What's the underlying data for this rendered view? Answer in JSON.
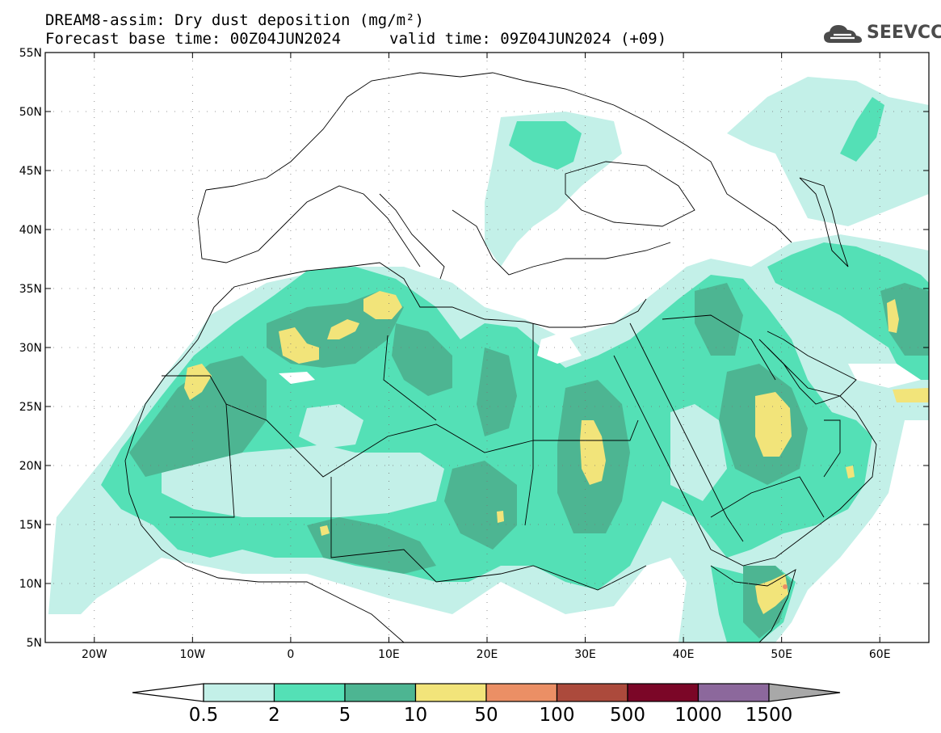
{
  "header": {
    "title": "DREAM8-assim: Dry dust deposition (mg/m²)",
    "base_time": "Forecast base time: 00Z04JUN2024",
    "valid_time": "valid time: 09Z04JUN2024 (+09)"
  },
  "logo": {
    "text": "SEEVCCC",
    "icon": "cloud-icon"
  },
  "map": {
    "lat_labels": [
      "55N",
      "50N",
      "45N",
      "40N",
      "35N",
      "30N",
      "25N",
      "20N",
      "15N",
      "10N",
      "5N"
    ],
    "lon_labels": [
      "20W",
      "10W",
      "0",
      "10E",
      "20E",
      "30E",
      "40E",
      "50E",
      "60E"
    ],
    "lat_range": [
      5,
      55
    ],
    "lon_range": [
      -25,
      65
    ],
    "grid": "dotted"
  },
  "colorbar": {
    "labels": [
      "0.5",
      "2",
      "5",
      "10",
      "50",
      "100",
      "500",
      "1000",
      "1500"
    ],
    "colors": [
      "#c3f0e8",
      "#54e0b6",
      "#4db592",
      "#f2e47a",
      "#eb8f65",
      "#ac4a3c",
      "#7b0627",
      "#8c689c"
    ],
    "over_color": "#a8a8a8",
    "under_color": "#ffffff"
  },
  "palette": {
    "c1": "#c3f0e8",
    "c2": "#54e0b6",
    "c3": "#4db592",
    "c4": "#f2e47a",
    "c5": "#eb8f65"
  }
}
